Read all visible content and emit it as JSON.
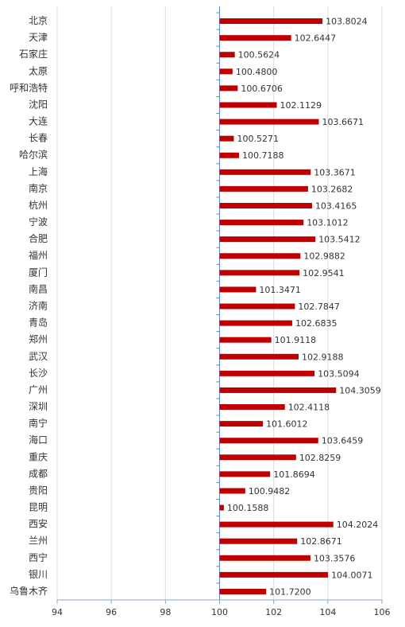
{
  "chart_data": {
    "type": "hbar",
    "color": "#c00000",
    "origin": 100,
    "categories": [
      "北京",
      "天津",
      "石家庄",
      "太原",
      "呼和浩特",
      "沈阳",
      "大连",
      "长春",
      "哈尔滨",
      "上海",
      "南京",
      "杭州",
      "宁波",
      "合肥",
      "福州",
      "厦门",
      "南昌",
      "济南",
      "青岛",
      "郑州",
      "武汉",
      "长沙",
      "广州",
      "深圳",
      "南宁",
      "海口",
      "重庆",
      "成都",
      "贵阳",
      "昆明",
      "西安",
      "兰州",
      "西宁",
      "银川",
      "乌鲁木齐"
    ],
    "values": [
      103.8024,
      102.6447,
      100.5624,
      100.48,
      100.6706,
      102.1129,
      103.6671,
      100.5271,
      100.7188,
      103.3671,
      103.2682,
      103.4165,
      103.1012,
      103.5412,
      102.9882,
      102.9541,
      101.3471,
      102.7847,
      102.6835,
      101.9118,
      102.9188,
      103.5094,
      104.3059,
      102.4118,
      101.6012,
      103.6459,
      102.8259,
      101.8694,
      100.9482,
      100.1588,
      104.2024,
      102.8671,
      103.3576,
      104.0071,
      101.72
    ],
    "value_labels": [
      "103.8024",
      "102.6447",
      "100.5624",
      "100.4800",
      "100.6706",
      "102.1129",
      "103.6671",
      "100.5271",
      "100.7188",
      "103.3671",
      "103.2682",
      "103.4165",
      "103.1012",
      "103.5412",
      "102.9882",
      "102.9541",
      "101.3471",
      "102.7847",
      "102.6835",
      "101.9118",
      "102.9188",
      "103.5094",
      "104.3059",
      "102.4118",
      "101.6012",
      "103.6459",
      "102.8259",
      "101.8694",
      "100.9482",
      "100.1588",
      "104.2024",
      "102.8671",
      "103.3576",
      "104.0071",
      "101.7200"
    ],
    "xlim": [
      94,
      106
    ],
    "xticks": [
      94,
      96,
      98,
      100,
      102,
      104,
      106
    ],
    "grid": true
  }
}
